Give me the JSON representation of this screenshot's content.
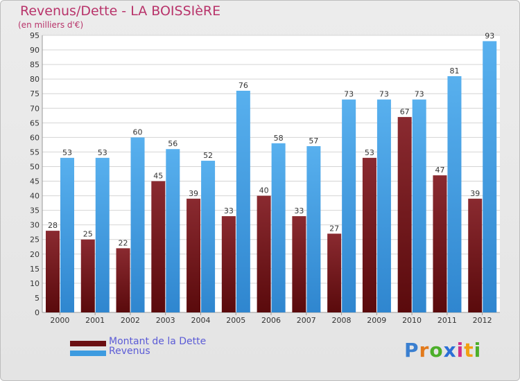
{
  "chart_data": {
    "type": "bar",
    "title": "Revenus/Dette - LA BOISSIèRE",
    "subtitle": "(en milliers d'€)",
    "categories": [
      "2000",
      "2001",
      "2002",
      "2003",
      "2004",
      "2005",
      "2006",
      "2007",
      "2008",
      "2009",
      "2010",
      "2011",
      "2012"
    ],
    "series": [
      {
        "name": "Montant de la Dette",
        "values": [
          28,
          25,
          22,
          45,
          39,
          33,
          40,
          33,
          27,
          53,
          67,
          47,
          39
        ],
        "color": "#7b1e22"
      },
      {
        "name": "Revenus",
        "values": [
          53,
          53,
          60,
          56,
          52,
          76,
          58,
          57,
          73,
          73,
          73,
          81,
          93
        ],
        "color": "#4aa3e6"
      }
    ],
    "ylim": [
      0,
      95
    ],
    "yticks": [
      0,
      5,
      10,
      15,
      20,
      25,
      30,
      35,
      40,
      45,
      50,
      55,
      60,
      65,
      70,
      75,
      80,
      85,
      90,
      95
    ],
    "grid": true,
    "legend": "bottom-left"
  },
  "legend": {
    "items": [
      {
        "label": "Montant de la Dette",
        "color": "#6b0f12"
      },
      {
        "label": "Revenus",
        "color": "#3d9be0"
      }
    ]
  },
  "logo": {
    "letters": [
      "P",
      "r",
      "o",
      "x",
      "i",
      "t",
      "i"
    ],
    "colors": [
      "#3a7fd0",
      "#e27a1c",
      "#4caf2a",
      "#2b6fd6",
      "#d12f8a",
      "#f2a012",
      "#4caf2a"
    ]
  }
}
